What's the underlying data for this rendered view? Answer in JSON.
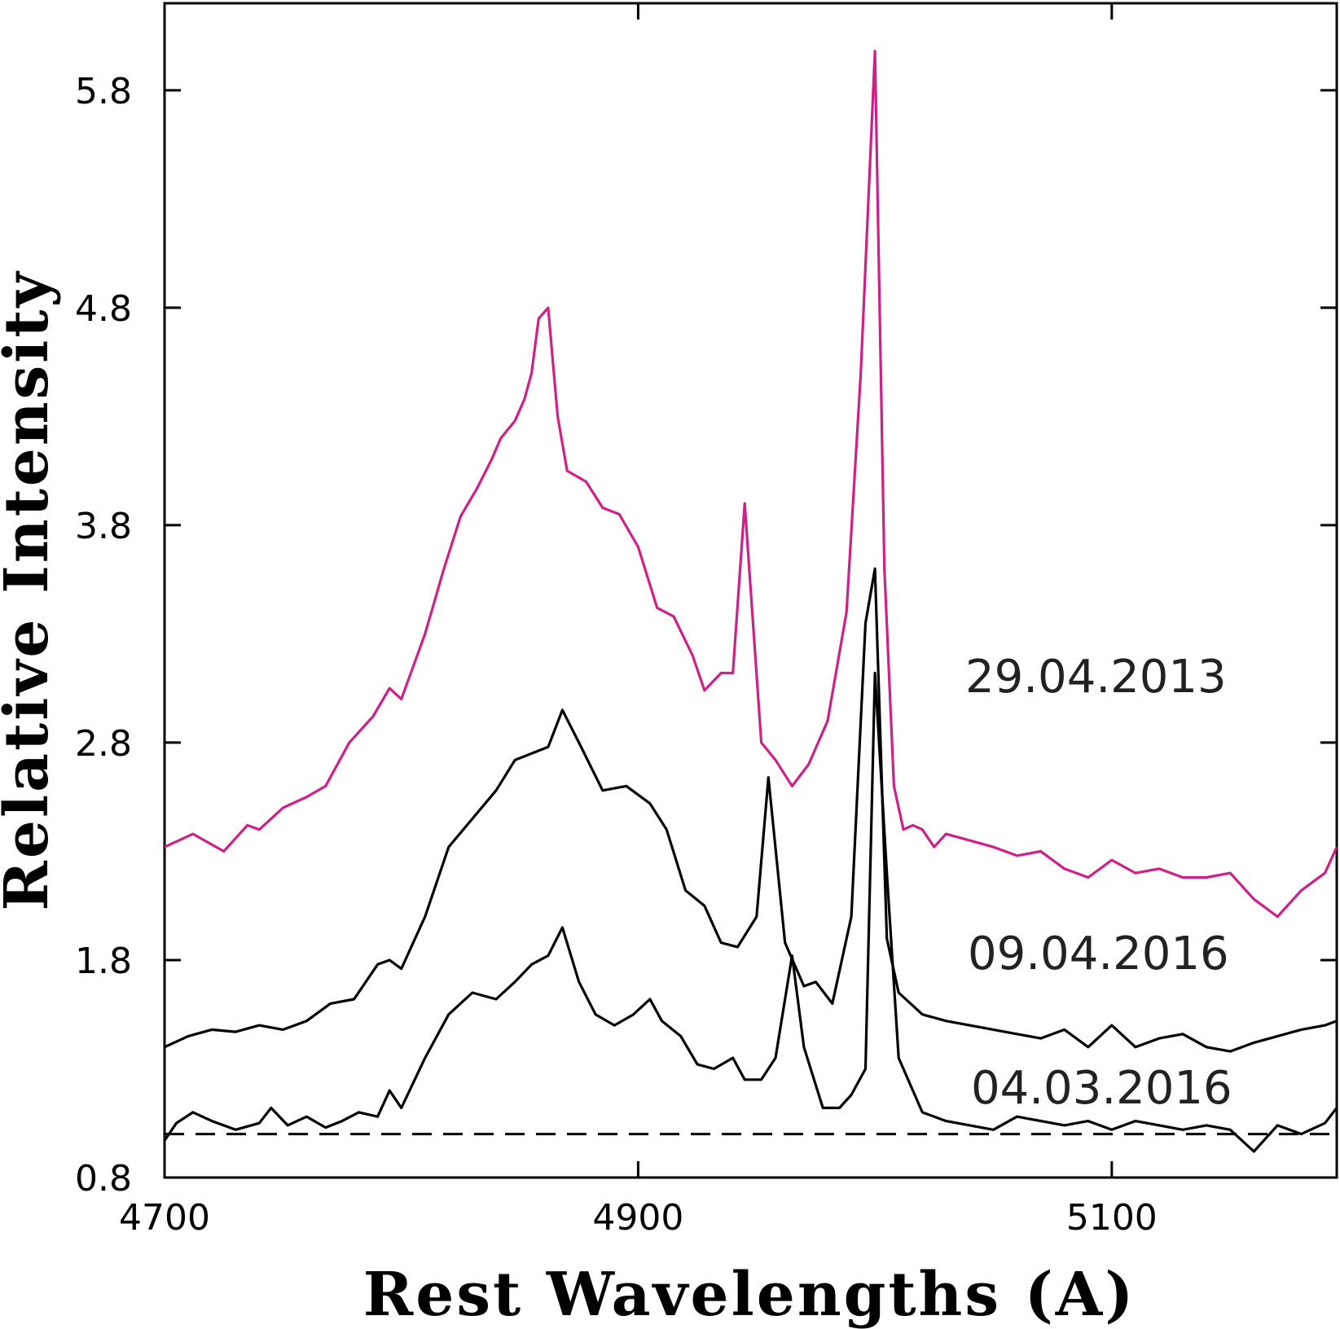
{
  "chart_data": {
    "type": "line",
    "title": "",
    "xlabel": "Rest Wavelengths (A)",
    "ylabel": "Relative Intensity",
    "xlim": [
      4700,
      5195
    ],
    "ylim": [
      0.8,
      6.2
    ],
    "xticks": [
      4700,
      4900,
      5100
    ],
    "xtick_labels": [
      "4700",
      "4900",
      "5100"
    ],
    "yticks": [
      0.8,
      1.8,
      2.8,
      3.8,
      4.8,
      5.8
    ],
    "ytick_labels": [
      "0.8",
      "1.8",
      "2.8",
      "3.8",
      "4.8",
      "5.8"
    ],
    "grid": false,
    "legend": "none",
    "annotations": [
      "29.04.2013",
      "09.04.2016",
      "04.03.2016"
    ],
    "reference_line": {
      "y": 1.0,
      "style": "dashed"
    },
    "series": [
      {
        "label": "29.04.2013",
        "color": "#d01f86",
        "x": [
          4700,
          4712,
          4725,
          4735,
          4740,
          4750,
          4760,
          4768,
          4778,
          4788,
          4795,
          4800,
          4810,
          4818,
          4825,
          4832,
          4838,
          4842,
          4848,
          4852,
          4855,
          4858,
          4862,
          4866,
          4870,
          4878,
          4885,
          4892,
          4900,
          4908,
          4915,
          4923,
          4928,
          4935,
          4940,
          4945,
          4952,
          4958,
          4965,
          4972,
          4980,
          4988,
          4994,
          5000,
          5004,
          5008,
          5012,
          5016,
          5020,
          5025,
          5030,
          5040,
          5050,
          5060,
          5070,
          5080,
          5090,
          5100,
          5110,
          5120,
          5130,
          5140,
          5150,
          5160,
          5170,
          5180,
          5190,
          5195
        ],
        "y": [
          2.32,
          2.38,
          2.3,
          2.42,
          2.4,
          2.5,
          2.55,
          2.6,
          2.8,
          2.92,
          3.05,
          3.0,
          3.3,
          3.6,
          3.84,
          3.97,
          4.1,
          4.2,
          4.28,
          4.38,
          4.5,
          4.75,
          4.8,
          4.3,
          4.05,
          4.0,
          3.88,
          3.85,
          3.7,
          3.42,
          3.38,
          3.2,
          3.04,
          3.12,
          3.12,
          3.9,
          2.8,
          2.72,
          2.6,
          2.7,
          2.9,
          3.4,
          4.5,
          5.98,
          3.6,
          2.6,
          2.4,
          2.42,
          2.4,
          2.32,
          2.38,
          2.35,
          2.32,
          2.28,
          2.3,
          2.22,
          2.18,
          2.26,
          2.2,
          2.22,
          2.18,
          2.18,
          2.2,
          2.08,
          2.0,
          2.12,
          2.2,
          2.32
        ]
      },
      {
        "label": "09.04.2016",
        "color": "#000000",
        "x": [
          4700,
          4710,
          4720,
          4730,
          4740,
          4750,
          4760,
          4770,
          4780,
          4790,
          4795,
          4800,
          4810,
          4820,
          4830,
          4840,
          4848,
          4855,
          4862,
          4868,
          4875,
          4885,
          4895,
          4905,
          4912,
          4920,
          4928,
          4935,
          4942,
          4950,
          4955,
          4962,
          4970,
          4975,
          4982,
          4990,
          4996,
          5000,
          5005,
          5010,
          5020,
          5030,
          5040,
          5050,
          5060,
          5070,
          5080,
          5090,
          5100,
          5110,
          5120,
          5130,
          5140,
          5150,
          5160,
          5170,
          5180,
          5190,
          5195
        ],
        "y": [
          1.4,
          1.45,
          1.48,
          1.47,
          1.5,
          1.48,
          1.52,
          1.6,
          1.62,
          1.78,
          1.8,
          1.76,
          2.0,
          2.32,
          2.45,
          2.58,
          2.72,
          2.75,
          2.78,
          2.95,
          2.8,
          2.58,
          2.6,
          2.52,
          2.4,
          2.12,
          2.05,
          1.88,
          1.86,
          2.0,
          2.64,
          1.88,
          1.68,
          1.7,
          1.6,
          2.0,
          3.35,
          3.6,
          1.9,
          1.65,
          1.55,
          1.52,
          1.5,
          1.48,
          1.46,
          1.44,
          1.48,
          1.4,
          1.5,
          1.4,
          1.44,
          1.46,
          1.4,
          1.38,
          1.42,
          1.45,
          1.48,
          1.5,
          1.52
        ]
      },
      {
        "label": "04.03.2016",
        "color": "#000000",
        "x": [
          4700,
          4705,
          4712,
          4720,
          4730,
          4740,
          4745,
          4752,
          4760,
          4768,
          4775,
          4782,
          4790,
          4795,
          4800,
          4810,
          4820,
          4830,
          4840,
          4848,
          4855,
          4862,
          4868,
          4875,
          4882,
          4890,
          4898,
          4905,
          4910,
          4918,
          4925,
          4932,
          4940,
          4945,
          4952,
          4958,
          4965,
          4970,
          4978,
          4985,
          4990,
          4996,
          5000,
          5005,
          5010,
          5020,
          5030,
          5040,
          5050,
          5060,
          5070,
          5080,
          5090,
          5100,
          5110,
          5120,
          5130,
          5140,
          5150,
          5160,
          5170,
          5180,
          5190,
          5195
        ],
        "y": [
          0.97,
          1.05,
          1.1,
          1.06,
          1.02,
          1.05,
          1.12,
          1.04,
          1.08,
          1.03,
          1.06,
          1.1,
          1.08,
          1.2,
          1.12,
          1.35,
          1.55,
          1.65,
          1.62,
          1.7,
          1.78,
          1.82,
          1.95,
          1.7,
          1.55,
          1.5,
          1.55,
          1.62,
          1.52,
          1.45,
          1.32,
          1.3,
          1.35,
          1.25,
          1.25,
          1.35,
          1.82,
          1.4,
          1.12,
          1.12,
          1.18,
          1.3,
          3.12,
          2.2,
          1.35,
          1.1,
          1.06,
          1.04,
          1.02,
          1.08,
          1.06,
          1.04,
          1.06,
          1.02,
          1.06,
          1.04,
          1.02,
          1.04,
          1.02,
          0.92,
          1.04,
          1.0,
          1.05,
          1.12
        ]
      }
    ]
  }
}
